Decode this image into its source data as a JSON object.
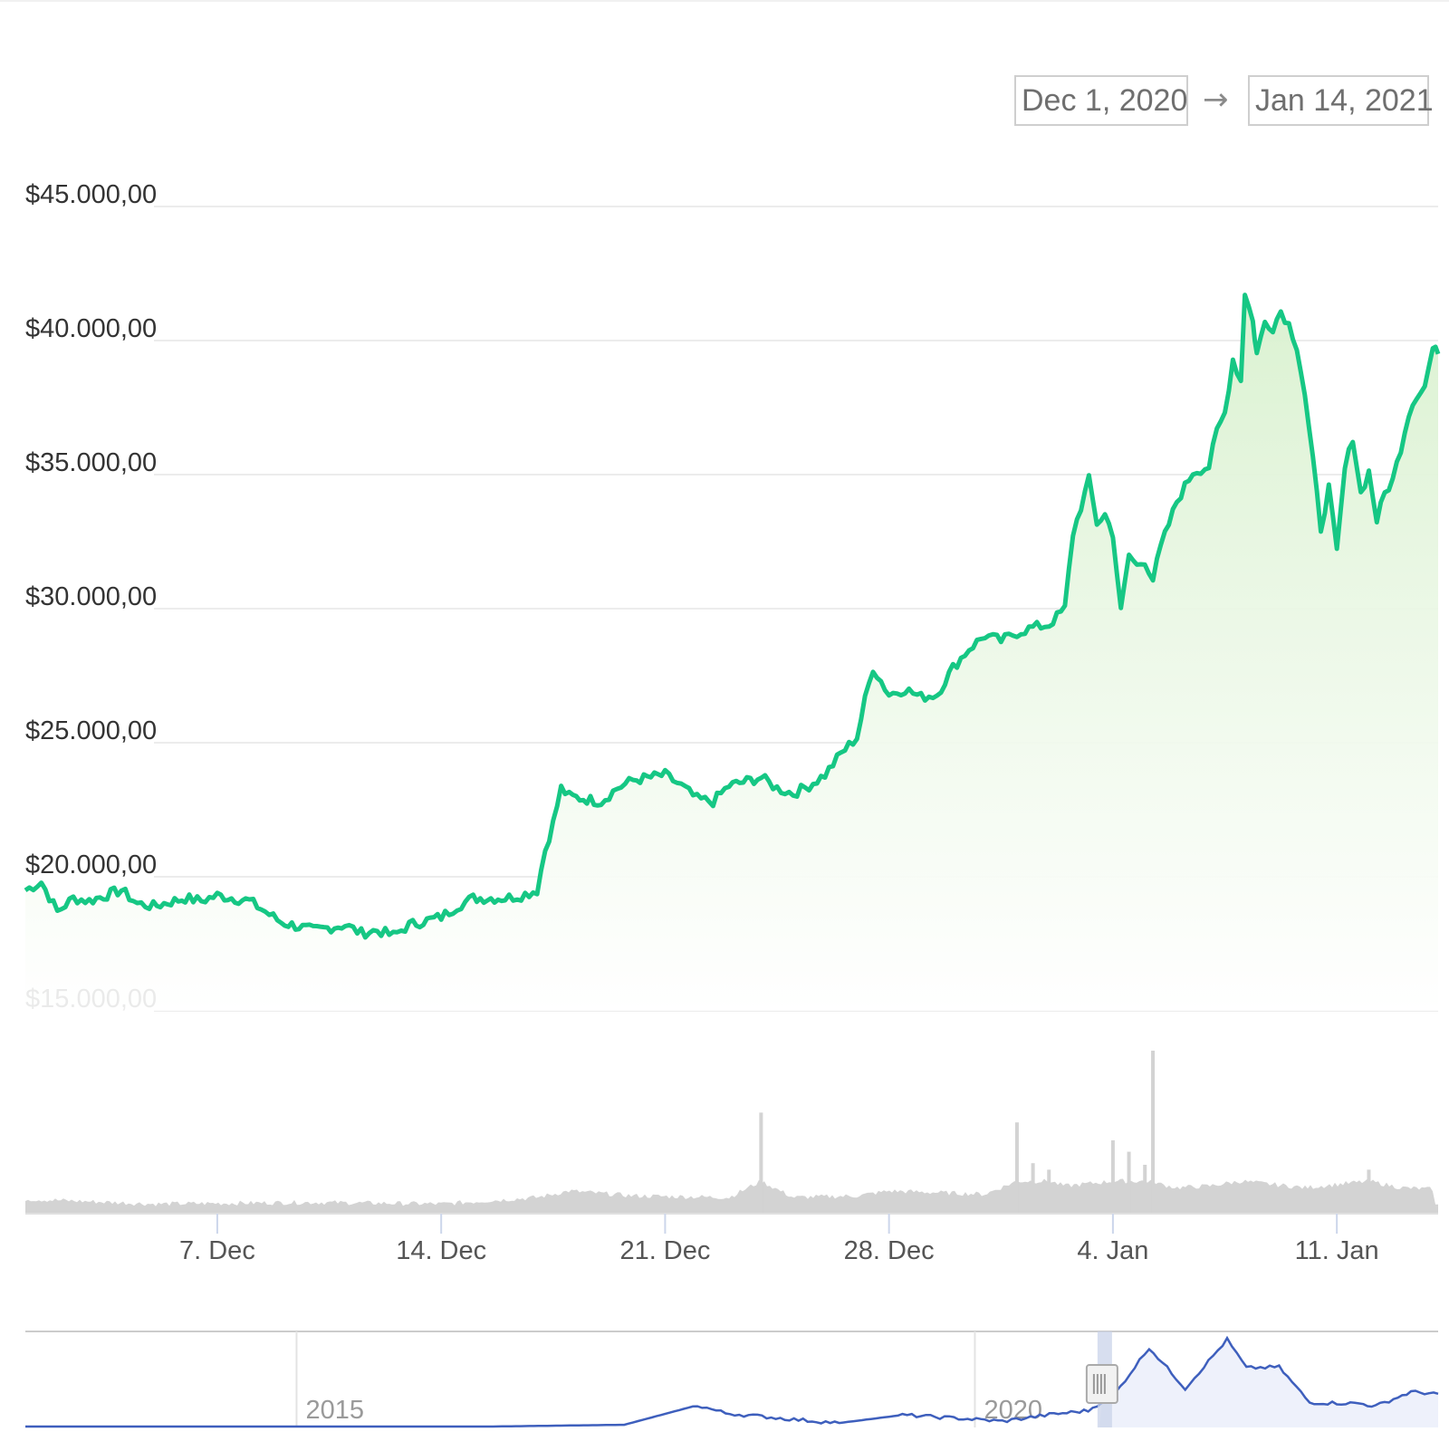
{
  "date_range": {
    "from": "Dec 1, 2020",
    "arrow": "→",
    "to": "Jan 14, 2021"
  },
  "colors": {
    "price_line": "#16c784",
    "area_top": "#d9f1cf",
    "area_bottom": "#ffffff",
    "volume": "#d3d3d3",
    "navigator_line": "#3e5fbd",
    "navigator_fill": "#eef1fb",
    "grid": "#ececec"
  },
  "chart_data": [
    {
      "type": "area",
      "title": "",
      "xlabel": "",
      "ylabel": "",
      "x_start": "2020-12-01",
      "x_end": "2021-01-14",
      "ylim": [
        15000,
        45000
      ],
      "y_ticks": [
        {
          "value": 45000,
          "label": "$45.000,00"
        },
        {
          "value": 40000,
          "label": "$40.000,00"
        },
        {
          "value": 35000,
          "label": "$35.000,00"
        },
        {
          "value": 30000,
          "label": "$30.000,00"
        },
        {
          "value": 25000,
          "label": "$25.000,00"
        },
        {
          "value": 20000,
          "label": "$20.000,00"
        },
        {
          "value": 15000,
          "label": "$15.000,00"
        }
      ],
      "x_ticks": [
        {
          "date": "2020-12-07",
          "label": "7. Dec"
        },
        {
          "date": "2020-12-14",
          "label": "14. Dec"
        },
        {
          "date": "2020-12-21",
          "label": "21. Dec"
        },
        {
          "date": "2020-12-28",
          "label": "28. Dec"
        },
        {
          "date": "2021-01-04",
          "label": "4. Jan"
        },
        {
          "date": "2021-01-11",
          "label": "11. Jan"
        }
      ],
      "grid": true,
      "series": [
        {
          "values_note": "",
          "points": [
            [
              "2020-12-01",
              19500
            ],
            [
              "2020-12-01 12:00",
              19800
            ],
            [
              "2020-12-02",
              18700
            ],
            [
              "2020-12-02 12:00",
              19200
            ],
            [
              "2020-12-03",
              19100
            ],
            [
              "2020-12-04",
              19500
            ],
            [
              "2020-12-04 12:00",
              19000
            ],
            [
              "2020-12-05",
              18900
            ],
            [
              "2020-12-06",
              19200
            ],
            [
              "2020-12-06 12:00",
              19100
            ],
            [
              "2020-12-07",
              19300
            ],
            [
              "2020-12-08",
              19100
            ],
            [
              "2020-12-08 12:00",
              18700
            ],
            [
              "2020-12-09",
              18300
            ],
            [
              "2020-12-10",
              18000
            ],
            [
              "2020-12-11",
              18200
            ],
            [
              "2020-12-11 12:00",
              17900
            ],
            [
              "2020-12-12",
              18000
            ],
            [
              "2020-12-12 12:00",
              17800
            ],
            [
              "2020-12-13",
              18200
            ],
            [
              "2020-12-14",
              18500
            ],
            [
              "2020-12-14 12:00",
              18900
            ],
            [
              "2020-12-15",
              19200
            ],
            [
              "2020-12-16",
              19200
            ],
            [
              "2020-12-16 12:00",
              19300
            ],
            [
              "2020-12-17",
              19500
            ],
            [
              "2020-12-17 06:00",
              21000
            ],
            [
              "2020-12-17 12:00",
              22000
            ],
            [
              "2020-12-17 18:00",
              23300
            ],
            [
              "2020-12-18",
              23000
            ],
            [
              "2020-12-19",
              22800
            ],
            [
              "2020-12-19 12:00",
              23300
            ],
            [
              "2020-12-20",
              23600
            ],
            [
              "2020-12-21",
              23800
            ],
            [
              "2020-12-21 12:00",
              23400
            ],
            [
              "2020-12-22",
              22900
            ],
            [
              "2020-12-22 12:00",
              22800
            ],
            [
              "2020-12-23",
              23400
            ],
            [
              "2020-12-24",
              23700
            ],
            [
              "2020-12-24 12:00",
              23300
            ],
            [
              "2020-12-25",
              23100
            ],
            [
              "2020-12-25 12:00",
              23400
            ],
            [
              "2020-12-26",
              23800
            ],
            [
              "2020-12-26 12:00",
              24600
            ],
            [
              "2020-12-27",
              25200
            ],
            [
              "2020-12-27 06:00",
              26600
            ],
            [
              "2020-12-27 12:00",
              27800
            ],
            [
              "2020-12-28",
              26800
            ],
            [
              "2020-12-28 12:00",
              27000
            ],
            [
              "2020-12-29",
              26700
            ],
            [
              "2020-12-29 12:00",
              26800
            ],
            [
              "2020-12-30",
              27800
            ],
            [
              "2020-12-30 12:00",
              28500
            ],
            [
              "2020-12-31",
              29000
            ],
            [
              "2020-12-31 12:00",
              28800
            ],
            [
              "2021-01-01",
              29100
            ],
            [
              "2021-01-01 12:00",
              29300
            ],
            [
              "2021-01-02",
              29400
            ],
            [
              "2021-01-02 12:00",
              30000
            ],
            [
              "2021-01-02 18:00",
              32800
            ],
            [
              "2021-01-03",
              33800
            ],
            [
              "2021-01-03 06:00",
              34800
            ],
            [
              "2021-01-03 12:00",
              33200
            ],
            [
              "2021-01-03 18:00",
              33500
            ],
            [
              "2021-01-04",
              32800
            ],
            [
              "2021-01-04 06:00",
              29900
            ],
            [
              "2021-01-04 12:00",
              32000
            ],
            [
              "2021-01-04 18:00",
              31600
            ],
            [
              "2021-01-05",
              31800
            ],
            [
              "2021-01-05 06:00",
              31100
            ],
            [
              "2021-01-05 12:00",
              32300
            ],
            [
              "2021-01-06",
              34000
            ],
            [
              "2021-01-06 12:00",
              35100
            ],
            [
              "2021-01-07",
              35300
            ],
            [
              "2021-01-07 06:00",
              36600
            ],
            [
              "2021-01-07 12:00",
              37300
            ],
            [
              "2021-01-07 18:00",
              39300
            ],
            [
              "2021-01-08",
              38500
            ],
            [
              "2021-01-08 03:00",
              41800
            ],
            [
              "2021-01-08 09:00",
              40700
            ],
            [
              "2021-01-08 12:00",
              39500
            ],
            [
              "2021-01-08 18:00",
              40700
            ],
            [
              "2021-01-09",
              40500
            ],
            [
              "2021-01-09 06:00",
              41100
            ],
            [
              "2021-01-09 12:00",
              40600
            ],
            [
              "2021-01-09 18:00",
              39800
            ],
            [
              "2021-01-10",
              38000
            ],
            [
              "2021-01-10 06:00",
              35500
            ],
            [
              "2021-01-10 12:00",
              33000
            ],
            [
              "2021-01-10 18:00",
              34500
            ],
            [
              "2021-01-11",
              32100
            ],
            [
              "2021-01-11 06:00",
              35200
            ],
            [
              "2021-01-11 12:00",
              36400
            ],
            [
              "2021-01-11 18:00",
              34300
            ],
            [
              "2021-01-12",
              35100
            ],
            [
              "2021-01-12 06:00",
              33300
            ],
            [
              "2021-01-12 12:00",
              34300
            ],
            [
              "2021-01-12 18:00",
              34800
            ],
            [
              "2021-01-13",
              36000
            ],
            [
              "2021-01-13 06:00",
              37300
            ],
            [
              "2021-01-13 12:00",
              38000
            ],
            [
              "2021-01-13 18:00",
              38300
            ],
            [
              "2021-01-14",
              39700
            ],
            [
              "2021-01-14 04:00",
              39500
            ]
          ]
        }
      ]
    },
    {
      "type": "bar",
      "title": "",
      "x_start": "2020-12-01",
      "x_end": "2021-01-14",
      "y_unit": "relative volume",
      "ylim": [
        0,
        100
      ],
      "series": [
        {
          "points": [
            [
              "2020-12-01",
              9
            ],
            [
              "2020-12-05",
              6
            ],
            [
              "2020-12-10",
              7
            ],
            [
              "2020-12-14",
              6
            ],
            [
              "2020-12-17",
              10
            ],
            [
              "2020-12-18",
              14
            ],
            [
              "2020-12-20",
              11
            ],
            [
              "2020-12-23",
              10
            ],
            [
              "2020-12-24",
              62
            ],
            [
              "2020-12-25",
              10
            ],
            [
              "2020-12-27",
              11
            ],
            [
              "2020-12-28",
              14
            ],
            [
              "2020-12-31",
              12
            ],
            [
              "2021-01-01",
              56
            ],
            [
              "2021-01-01 12:00",
              31
            ],
            [
              "2021-01-02",
              27
            ],
            [
              "2021-01-02 12:00",
              17
            ],
            [
              "2021-01-03",
              18
            ],
            [
              "2021-01-04",
              45
            ],
            [
              "2021-01-04 12:00",
              38
            ],
            [
              "2021-01-05",
              30
            ],
            [
              "2021-01-05 06:00",
              100
            ],
            [
              "2021-01-05 12:00",
              18
            ],
            [
              "2021-01-06",
              16
            ],
            [
              "2021-01-07",
              17
            ],
            [
              "2021-01-08",
              20
            ],
            [
              "2021-01-10",
              16
            ],
            [
              "2021-01-11",
              18
            ],
            [
              "2021-01-12",
              27
            ],
            [
              "2021-01-13",
              16
            ],
            [
              "2021-01-14",
              15
            ]
          ]
        }
      ]
    },
    {
      "type": "area",
      "title": "",
      "x_start": "2013-01-01",
      "x_end": "2023-06-01",
      "x_ticks": [
        {
          "date": "2015-01-01",
          "label": "2015"
        },
        {
          "date": "2020-01-01",
          "label": "2020"
        }
      ],
      "selected_range": [
        "2020-12-01",
        "2021-01-14"
      ],
      "y_unit": "relative price",
      "ylim": [
        0,
        100
      ],
      "series": [
        {
          "points": [
            [
              "2013-01-01",
              1
            ],
            [
              "2015-01-01",
              1
            ],
            [
              "2016-06-01",
              1
            ],
            [
              "2017-06-01",
              3
            ],
            [
              "2017-12-15",
              25
            ],
            [
              "2018-03-01",
              16
            ],
            [
              "2018-09-01",
              9
            ],
            [
              "2019-01-01",
              5
            ],
            [
              "2019-06-20",
              14
            ],
            [
              "2019-12-01",
              10
            ],
            [
              "2020-03-15",
              7
            ],
            [
              "2020-08-01",
              15
            ],
            [
              "2020-11-01",
              19
            ],
            [
              "2021-01-14",
              39
            ],
            [
              "2021-04-14",
              90
            ],
            [
              "2021-07-20",
              44
            ],
            [
              "2021-11-10",
              99
            ],
            [
              "2022-01-01",
              67
            ],
            [
              "2022-03-30",
              68
            ],
            [
              "2022-06-20",
              28
            ],
            [
              "2022-11-01",
              27
            ],
            [
              "2022-12-15",
              24
            ],
            [
              "2023-03-20",
              40
            ],
            [
              "2023-06-01",
              38
            ]
          ]
        }
      ]
    }
  ]
}
